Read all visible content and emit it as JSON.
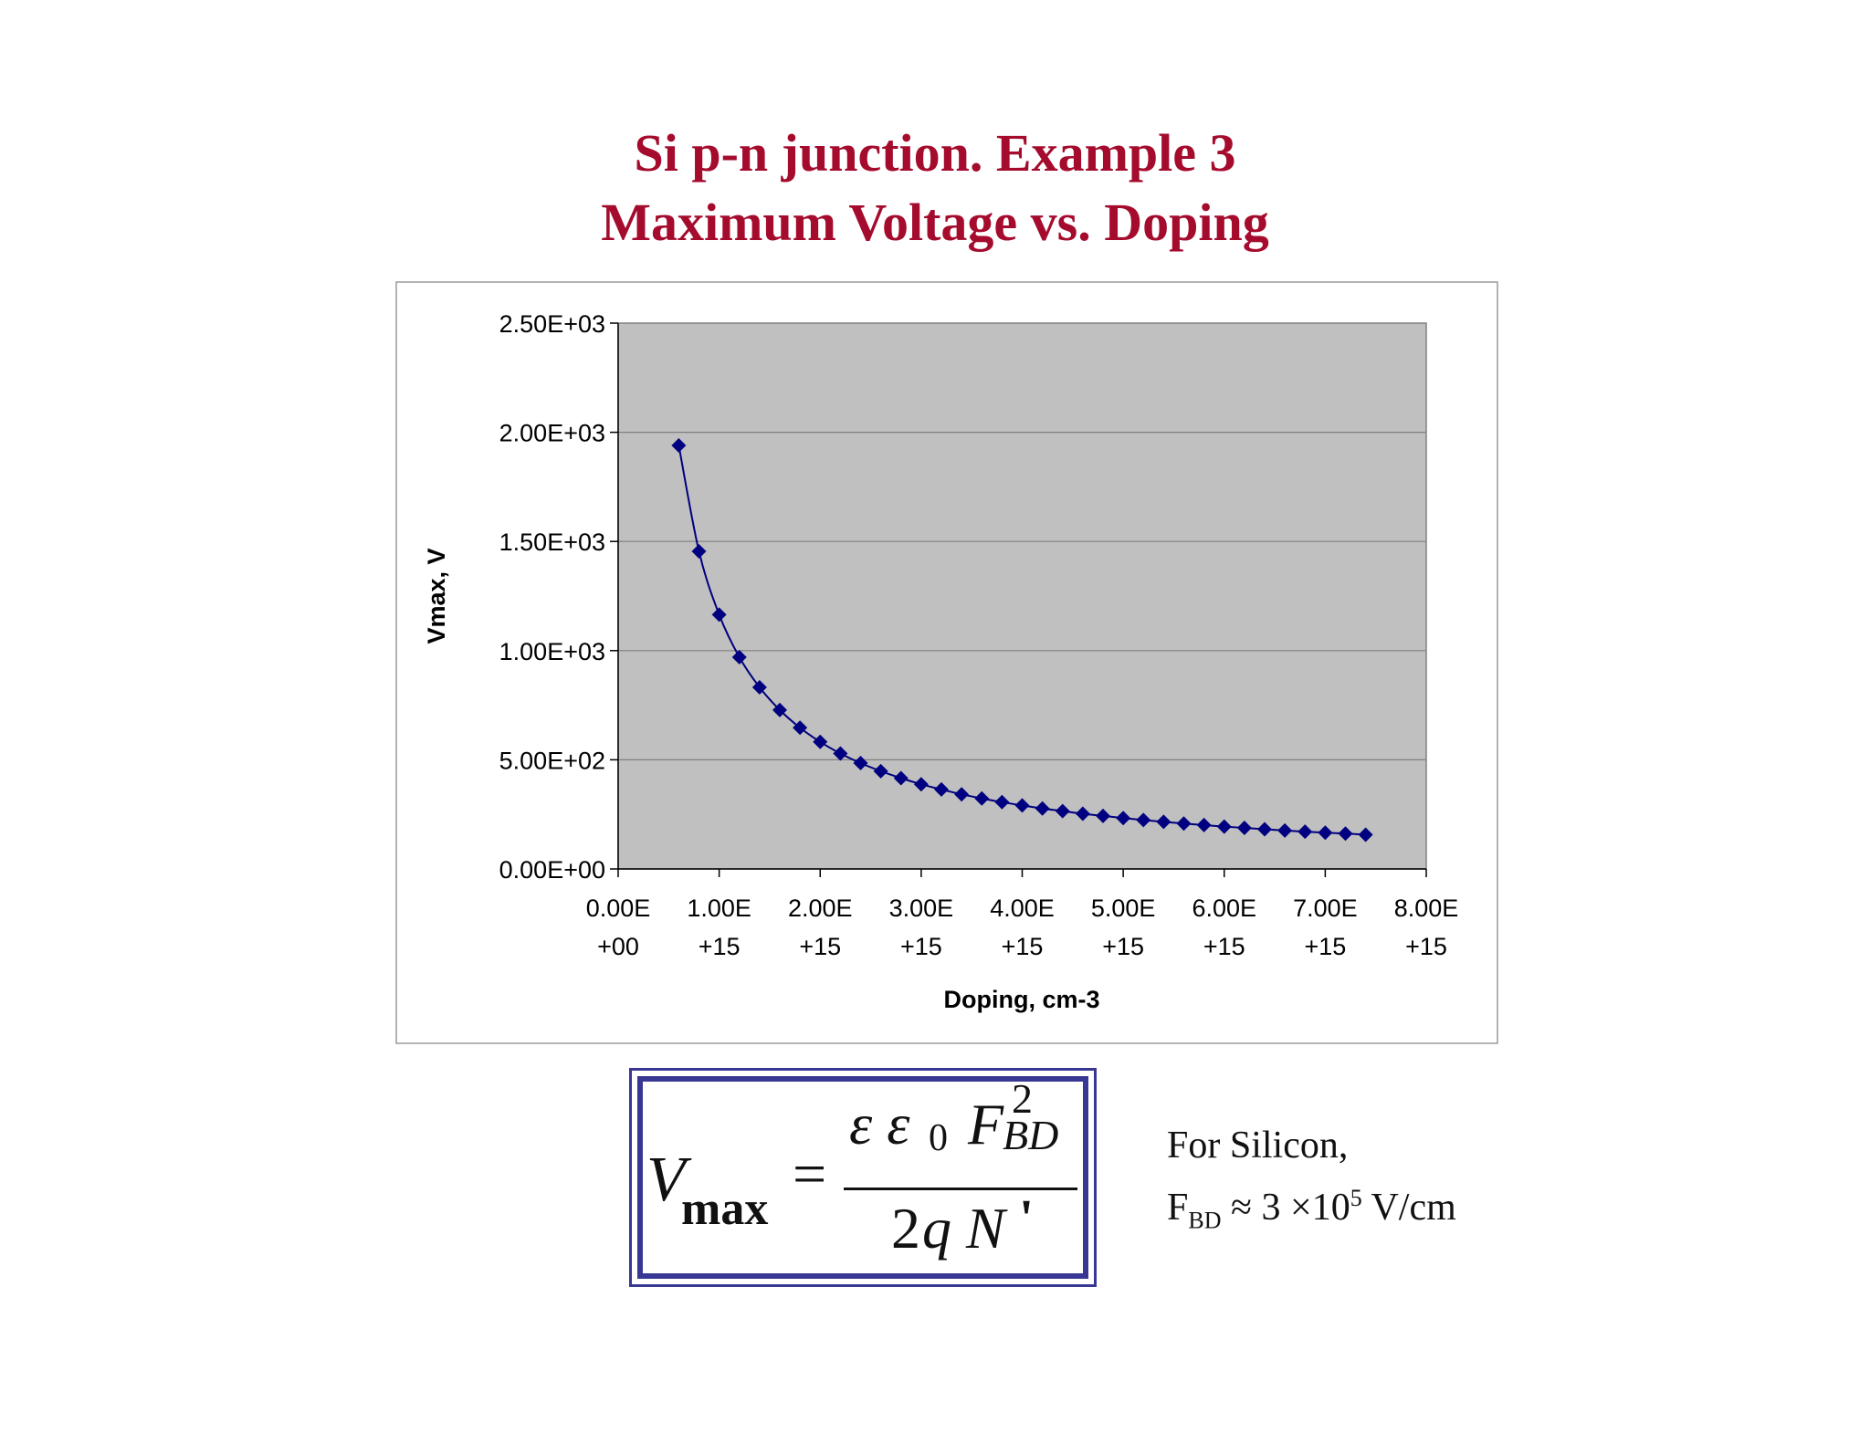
{
  "title": {
    "line1": "Si p-n junction. Example 3",
    "line2": "Maximum Voltage vs. Doping"
  },
  "chart_data": {
    "type": "scatter",
    "xlabel": "Doping, cm-3",
    "ylabel": "Vmax, V",
    "xlim": [
      0,
      8000000000000000.0
    ],
    "ylim": [
      0,
      2500
    ],
    "grid": true,
    "markers": "diamond",
    "line": "smooth",
    "series_color": "#000080",
    "plot_background": "#c0c0c0",
    "x_ticks": [
      {
        "value": 0,
        "line1": "0.00E",
        "line2": "+00"
      },
      {
        "value": 1000000000000000.0,
        "line1": "1.00E",
        "line2": "+15"
      },
      {
        "value": 2000000000000000.0,
        "line1": "2.00E",
        "line2": "+15"
      },
      {
        "value": 3000000000000000.0,
        "line1": "3.00E",
        "line2": "+15"
      },
      {
        "value": 4000000000000000.0,
        "line1": "4.00E",
        "line2": "+15"
      },
      {
        "value": 5000000000000000.0,
        "line1": "5.00E",
        "line2": "+15"
      },
      {
        "value": 6000000000000000.0,
        "line1": "6.00E",
        "line2": "+15"
      },
      {
        "value": 7000000000000000.0,
        "line1": "7.00E",
        "line2": "+15"
      },
      {
        "value": 8000000000000000.0,
        "line1": "8.00E",
        "line2": "+15"
      }
    ],
    "y_ticks": [
      {
        "value": 0,
        "label": "0.00E+00"
      },
      {
        "value": 500,
        "label": "5.00E+02"
      },
      {
        "value": 1000,
        "label": "1.00E+03"
      },
      {
        "value": 1500,
        "label": "1.50E+03"
      },
      {
        "value": 2000,
        "label": "2.00E+03"
      },
      {
        "value": 2500,
        "label": "2.50E+03"
      }
    ],
    "x": [
      600000000000000.0,
      800000000000000.0,
      1000000000000000.0,
      1200000000000000.0,
      1400000000000000.0,
      1600000000000000.0,
      1800000000000000.0,
      2000000000000000.0,
      2200000000000000.0,
      2400000000000000.0,
      2600000000000000.0,
      2800000000000000.0,
      3000000000000000.0,
      3200000000000000.0,
      3400000000000000.0,
      3600000000000000.0,
      3800000000000000.0,
      4000000000000000.0,
      4200000000000000.0,
      4400000000000000.0,
      4600000000000000.0,
      4800000000000000.0,
      5000000000000000.0,
      5200000000000000.0,
      5400000000000000.0,
      5600000000000000.0,
      5800000000000000.0,
      6000000000000000.0,
      6200000000000000.0,
      6400000000000000.0,
      6600000000000000.0,
      6800000000000000.0,
      7000000000000000.0,
      7200000000000000.0,
      7400000000000000.0
    ],
    "y": [
      1940,
      1455,
      1165,
      970,
      832,
      728,
      647,
      582,
      529,
      485,
      448,
      416,
      388,
      364,
      342,
      323,
      306,
      291,
      277,
      265,
      253,
      243,
      233,
      224,
      216,
      208,
      201,
      194,
      188,
      182,
      176,
      171,
      166,
      162,
      157
    ]
  },
  "formula": {
    "lhs_symbol": "V",
    "lhs_subscript": "max",
    "equals": "=",
    "numerator_eps": "ε ε",
    "numerator_eps_sub": "0",
    "numerator_f": "F",
    "numerator_f_sup": "2",
    "numerator_f_sub": "BD",
    "denominator_coef": "2",
    "denominator_q": "q",
    "denominator_n": "N",
    "denominator_prime": "'"
  },
  "note": {
    "line1": "For Silicon,",
    "f_symbol": "F",
    "f_sub": "BD",
    "approx_text": " ≈ 3 ×10",
    "exp": "5",
    "unit": " V/cm"
  }
}
